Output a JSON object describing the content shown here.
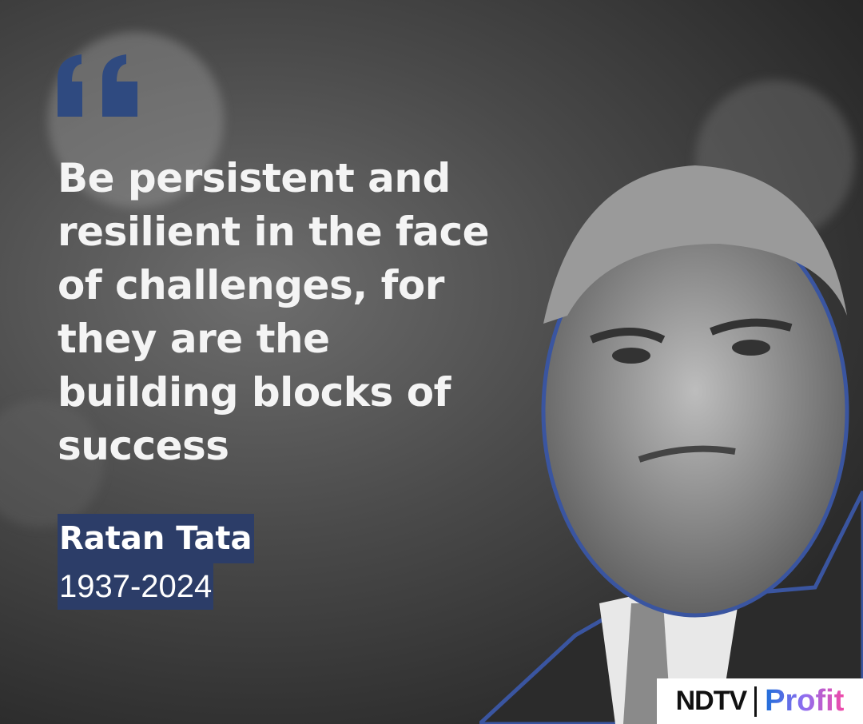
{
  "quote": {
    "lines": [
      "Be persistent and",
      "resilient in the face",
      "of challenges, for",
      "they are the",
      "building blocks of",
      "success"
    ]
  },
  "author": {
    "name": "Ratan Tata",
    "years": "1937-2024"
  },
  "logo": {
    "brand": "NDTV",
    "sub": "Profit"
  },
  "icons": {
    "quote": "quote-open-icon"
  },
  "colors": {
    "accent": "#2c3d68",
    "quote_mark": "#2f4a80",
    "text": "#f4f4f4"
  }
}
